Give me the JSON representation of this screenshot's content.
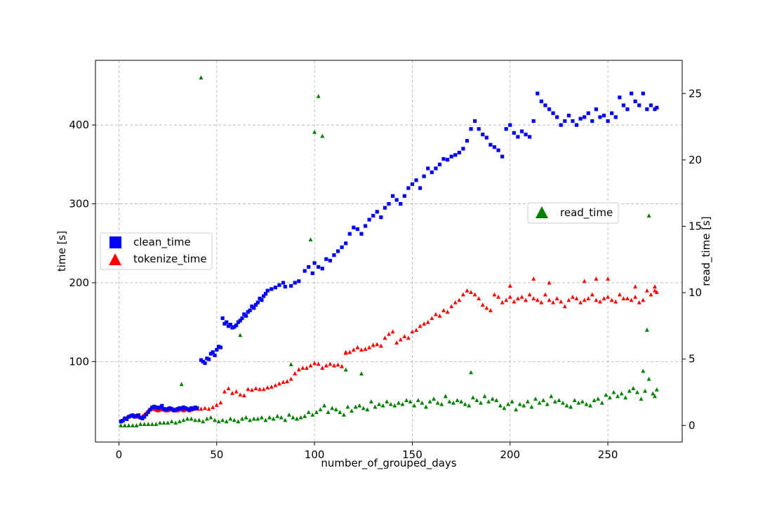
{
  "chart_data": {
    "type": "scatter",
    "title": "",
    "xlabel": "number_of_grouped_days",
    "ylabel": "time [s]",
    "ylabel_right": "read_time [s]",
    "xlim": [
      -12,
      288
    ],
    "ylim": [
      -2,
      482
    ],
    "ylim_right": [
      -1.25,
      27.5
    ],
    "x_ticks": [
      0,
      50,
      100,
      150,
      200,
      250
    ],
    "x_tick_labels": [
      "0",
      "50",
      "100",
      "150",
      "200",
      "250"
    ],
    "y_ticks": [
      100,
      200,
      300,
      400
    ],
    "y_tick_labels": [
      "100",
      "200",
      "300",
      "400"
    ],
    "y_ticks_right": [
      0,
      5,
      10,
      15,
      20,
      25
    ],
    "y_tick_labels_right": [
      "0",
      "5",
      "10",
      "15",
      "20",
      "25"
    ],
    "grid": true,
    "legend_left": {
      "placement": "center-left",
      "entries": [
        "clean_time",
        "tokenize_time"
      ]
    },
    "legend_right": {
      "placement": "center-right",
      "entries": [
        "read_time"
      ]
    },
    "series": [
      {
        "name": "clean_time",
        "axis": "left",
        "color": "#0000ff",
        "marker": "square",
        "x": [
          1,
          2,
          3,
          4,
          5,
          6,
          7,
          8,
          9,
          10,
          11,
          12,
          13,
          14,
          15,
          16,
          17,
          18,
          19,
          20,
          21,
          22,
          23,
          24,
          25,
          26,
          27,
          28,
          29,
          30,
          31,
          32,
          33,
          34,
          35,
          36,
          37,
          38,
          39,
          40,
          42,
          43,
          44,
          45,
          46,
          47,
          48,
          49,
          50,
          51,
          52,
          53,
          54,
          55,
          56,
          57,
          58,
          59,
          60,
          61,
          62,
          63,
          64,
          65,
          66,
          67,
          68,
          69,
          70,
          71,
          72,
          73,
          74,
          75,
          76,
          78,
          80,
          82,
          84,
          85,
          88,
          90,
          92,
          95,
          97,
          99,
          100,
          102,
          104,
          106,
          108,
          110,
          112,
          114,
          116,
          118,
          120,
          122,
          124,
          126,
          128,
          130,
          132,
          134,
          136,
          138,
          140,
          142,
          144,
          146,
          148,
          150,
          152,
          154,
          156,
          158,
          160,
          162,
          164,
          166,
          168,
          170,
          172,
          174,
          176,
          178,
          180,
          182,
          184,
          186,
          188,
          190,
          192,
          194,
          196,
          198,
          200,
          202,
          204,
          206,
          208,
          210,
          212,
          214,
          216,
          218,
          220,
          222,
          224,
          226,
          228,
          230,
          232,
          234,
          236,
          238,
          240,
          242,
          244,
          246,
          248,
          250,
          252,
          254,
          256,
          258,
          260,
          262,
          264,
          266,
          268,
          270,
          272,
          274,
          275
        ],
        "y": [
          24,
          25,
          28,
          27,
          30,
          31,
          32,
          30,
          31,
          32,
          29,
          28,
          30,
          33,
          36,
          39,
          42,
          43,
          42,
          41,
          42,
          44,
          40,
          39,
          40,
          41,
          40,
          38,
          39,
          40,
          41,
          40,
          42,
          41,
          40,
          39,
          41,
          40,
          42,
          41,
          102,
          100,
          98,
          104,
          103,
          110,
          112,
          108,
          115,
          119,
          118,
          155,
          148,
          150,
          145,
          147,
          143,
          144,
          146,
          150,
          152,
          155,
          160,
          158,
          163,
          165,
          170,
          168,
          172,
          175,
          180,
          178,
          183,
          186,
          190,
          192,
          194,
          197,
          200,
          195,
          196,
          200,
          202,
          215,
          220,
          212,
          225,
          220,
          218,
          230,
          228,
          235,
          240,
          245,
          250,
          262,
          270,
          268,
          262,
          272,
          280,
          285,
          290,
          283,
          295,
          300,
          310,
          305,
          300,
          310,
          320,
          325,
          330,
          320,
          335,
          345,
          340,
          345,
          350,
          357,
          356,
          360,
          362,
          365,
          370,
          380,
          395,
          405,
          395,
          388,
          384,
          375,
          372,
          368,
          360,
          395,
          400,
          390,
          385,
          392,
          388,
          385,
          405,
          440,
          430,
          425,
          420,
          415,
          410,
          400,
          405,
          412,
          405,
          400,
          408,
          410,
          415,
          405,
          420,
          410,
          412,
          405,
          415,
          410,
          435,
          425,
          420,
          440,
          430,
          425,
          440,
          420,
          425,
          420,
          422
        ]
      },
      {
        "name": "tokenize_time",
        "axis": "left",
        "color": "#ff0000",
        "marker": "triangle",
        "x": [
          1,
          2,
          3,
          4,
          5,
          6,
          7,
          8,
          9,
          10,
          11,
          12,
          13,
          14,
          15,
          16,
          17,
          18,
          19,
          20,
          21,
          22,
          23,
          24,
          25,
          26,
          27,
          28,
          29,
          30,
          31,
          32,
          33,
          34,
          35,
          36,
          37,
          38,
          39,
          40,
          42,
          44,
          46,
          48,
          50,
          52,
          54,
          56,
          58,
          60,
          62,
          64,
          66,
          68,
          70,
          72,
          74,
          76,
          78,
          80,
          82,
          84,
          86,
          88,
          90,
          92,
          94,
          96,
          98,
          100,
          102,
          104,
          106,
          108,
          110,
          112,
          114,
          116,
          118,
          120,
          122,
          124,
          126,
          128,
          130,
          132,
          134,
          136,
          138,
          140,
          142,
          144,
          146,
          148,
          150,
          152,
          154,
          156,
          158,
          160,
          162,
          164,
          166,
          168,
          170,
          172,
          174,
          176,
          178,
          180,
          182,
          184,
          186,
          188,
          190,
          192,
          194,
          196,
          198,
          200,
          202,
          204,
          206,
          208,
          210,
          212,
          214,
          216,
          218,
          220,
          222,
          224,
          226,
          228,
          230,
          232,
          234,
          236,
          238,
          240,
          242,
          244,
          246,
          248,
          250,
          252,
          254,
          256,
          258,
          260,
          262,
          264,
          266,
          268,
          270,
          272,
          274,
          275
        ],
        "y": [
          25,
          26,
          28,
          29,
          30,
          31,
          32,
          31,
          32,
          30,
          29,
          31,
          33,
          35,
          38,
          40,
          40,
          40,
          39,
          38,
          39,
          40,
          39,
          38,
          38,
          39,
          40,
          39,
          38,
          38,
          39,
          40,
          38,
          39,
          40,
          38,
          39,
          40,
          41,
          40,
          40,
          41,
          40,
          42,
          45,
          48,
          62,
          66,
          60,
          62,
          58,
          57,
          65,
          64,
          66,
          65,
          65,
          67,
          68,
          70,
          72,
          74,
          75,
          78,
          85,
          90,
          92,
          92,
          95,
          98,
          97,
          92,
          95,
          97,
          95,
          96,
          94,
          111,
          112,
          115,
          118,
          115,
          116,
          118,
          121,
          122,
          120,
          130,
          135,
          138,
          124,
          128,
          132,
          130,
          138,
          140,
          145,
          148,
          150,
          155,
          160,
          158,
          165,
          163,
          170,
          175,
          178,
          185,
          190,
          188,
          185,
          180,
          172,
          168,
          165,
          185,
          182,
          175,
          178,
          182,
          176,
          180,
          182,
          178,
          185,
          180,
          178,
          175,
          185,
          178,
          175,
          180,
          176,
          170,
          178,
          182,
          180,
          175,
          178,
          180,
          185,
          178,
          176,
          180,
          182,
          178,
          176,
          185,
          180,
          180,
          178,
          182,
          175,
          178,
          190,
          185,
          190,
          188
        ],
        "outliers": [
          [
            116,
            112
          ],
          [
            200,
            196
          ],
          [
            212,
            205
          ],
          [
            220,
            200
          ],
          [
            238,
            202
          ],
          [
            244,
            205
          ],
          [
            250,
            205
          ],
          [
            264,
            195
          ],
          [
            274,
            195
          ]
        ]
      },
      {
        "name": "read_time",
        "axis": "right",
        "color": "#008000",
        "marker": "triangle",
        "x": [
          1,
          3,
          5,
          7,
          9,
          11,
          13,
          15,
          17,
          19,
          21,
          23,
          25,
          27,
          29,
          31,
          33,
          35,
          37,
          39,
          41,
          43,
          45,
          47,
          49,
          51,
          53,
          55,
          57,
          59,
          61,
          63,
          65,
          67,
          69,
          71,
          73,
          75,
          77,
          79,
          81,
          83,
          85,
          87,
          89,
          91,
          93,
          95,
          97,
          99,
          101,
          103,
          105,
          107,
          109,
          111,
          113,
          115,
          117,
          119,
          121,
          123,
          125,
          127,
          129,
          131,
          133,
          135,
          137,
          139,
          141,
          143,
          145,
          147,
          149,
          151,
          153,
          155,
          157,
          159,
          161,
          163,
          165,
          167,
          169,
          171,
          173,
          175,
          177,
          179,
          181,
          183,
          185,
          187,
          189,
          191,
          193,
          195,
          197,
          199,
          201,
          203,
          205,
          207,
          209,
          211,
          213,
          215,
          217,
          219,
          221,
          223,
          225,
          227,
          229,
          231,
          233,
          235,
          237,
          239,
          241,
          243,
          245,
          247,
          249,
          251,
          253,
          255,
          257,
          259,
          261,
          263,
          265,
          267,
          269,
          271,
          273,
          275
        ],
        "y": [
          0.0,
          0.0,
          0.0,
          0.0,
          0.0,
          0.1,
          0.1,
          0.1,
          0.1,
          0.1,
          0.2,
          0.2,
          0.2,
          0.3,
          0.2,
          0.3,
          0.4,
          0.5,
          0.5,
          0.4,
          0.4,
          0.3,
          0.5,
          0.6,
          0.4,
          0.3,
          0.4,
          0.3,
          0.5,
          0.4,
          0.3,
          0.5,
          0.6,
          0.4,
          0.5,
          0.5,
          0.6,
          0.4,
          0.6,
          0.5,
          0.7,
          0.6,
          0.4,
          0.8,
          0.6,
          0.5,
          0.6,
          0.7,
          1.0,
          0.8,
          1.0,
          1.2,
          1.5,
          1.0,
          1.3,
          1.2,
          1.0,
          0.8,
          1.4,
          1.1,
          1.4,
          1.5,
          1.3,
          1.2,
          1.8,
          1.4,
          1.6,
          1.5,
          1.8,
          1.6,
          1.5,
          1.7,
          1.6,
          1.9,
          1.8,
          1.5,
          1.9,
          1.7,
          1.4,
          1.8,
          2.0,
          1.7,
          1.6,
          2.2,
          1.8,
          1.7,
          1.9,
          1.8,
          1.6,
          1.5,
          2.1,
          1.9,
          1.7,
          2.2,
          1.8,
          2.0,
          1.9,
          1.5,
          1.3,
          1.6,
          1.8,
          1.2,
          1.6,
          1.5,
          1.8,
          1.4,
          2.0,
          1.7,
          1.9,
          1.6,
          2.2,
          1.8,
          1.9,
          1.7,
          1.5,
          1.4,
          1.9,
          1.7,
          1.8,
          1.6,
          1.5,
          1.9,
          2.0,
          1.7,
          2.3,
          2.1,
          2.5,
          2.2,
          2.4,
          2.1,
          2.6,
          2.8,
          2.5,
          2.0,
          2.6,
          3.5,
          2.4,
          2.7
        ],
        "outliers": [
          [
            32,
            3.1
          ],
          [
            42,
            26.2
          ],
          [
            62,
            6.8
          ],
          [
            88,
            4.6
          ],
          [
            98,
            14.0
          ],
          [
            100,
            22.1
          ],
          [
            102,
            24.8
          ],
          [
            104,
            21.8
          ],
          [
            116,
            4.2
          ],
          [
            124,
            3.9
          ],
          [
            180,
            4.0
          ],
          [
            268,
            4.1
          ],
          [
            270,
            7.2
          ],
          [
            271,
            15.8
          ],
          [
            274,
            2.2
          ]
        ]
      }
    ]
  }
}
